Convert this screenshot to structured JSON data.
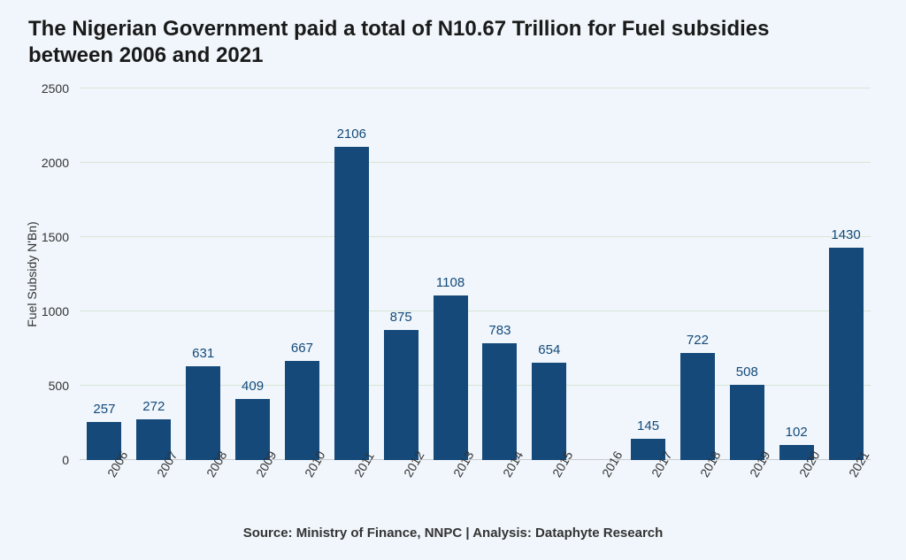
{
  "background_color": "#f0f6fb",
  "title": {
    "text": "The Nigerian Government paid a total of N10.67 Trillion for Fuel subsidies between 2006 and 2021",
    "color": "#1a1a1a",
    "fontsize": 24,
    "fontweight": 700
  },
  "chart": {
    "type": "bar",
    "categories": [
      "2006",
      "2007",
      "2008",
      "2009",
      "2010",
      "2011",
      "2012",
      "2013",
      "2014",
      "2015",
      "2016",
      "2017",
      "2018",
      "2019",
      "2020",
      "2021"
    ],
    "values": [
      257,
      272,
      631,
      409,
      667,
      2106,
      875,
      1108,
      783,
      654,
      0,
      145,
      722,
      508,
      102,
      1430
    ],
    "value_labels": [
      "257",
      "272",
      "631",
      "409",
      "667",
      "2106",
      "875",
      "1108",
      "783",
      "654",
      "",
      "145",
      "722",
      "508",
      "102",
      "1430"
    ],
    "bar_color": "#14497a",
    "bar_label_color": "#14497a",
    "bar_width": 0.7,
    "ylim": [
      0,
      2500
    ],
    "ytick_step": 500,
    "yticks": [
      0,
      500,
      1000,
      1500,
      2000,
      2500
    ],
    "ylabel": "Fuel Subsidy N'Bn)",
    "grid_color": "#d8e6d6",
    "axis_line_color": "#cccccc",
    "axis_text_color": "#333333",
    "tick_fontsize": 14,
    "label_fontsize": 14,
    "data_label_fontsize": 15,
    "xtick_rotation": -60
  },
  "source": {
    "text": "Source: Ministry of Finance, NNPC | Analysis: Dataphyte Research",
    "fontsize": 15,
    "fontweight": 700
  }
}
